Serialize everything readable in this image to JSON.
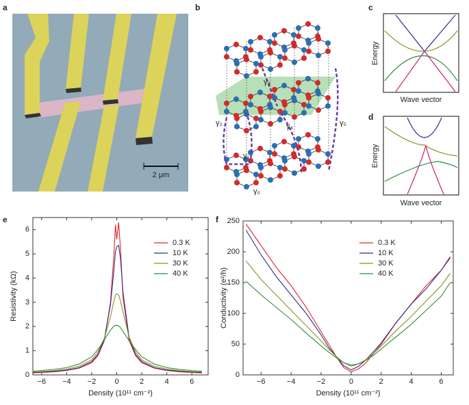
{
  "panels": {
    "a": {
      "label": "a",
      "scale_bar": "2 μm"
    },
    "b": {
      "label": "b",
      "hoppings": [
        "γ₀",
        "γ₁",
        "γ₂",
        "γ₃",
        "γ₄",
        "γ₅"
      ]
    },
    "c": {
      "label": "c",
      "y_label": "Energy",
      "x_label": "Wave vector"
    },
    "d": {
      "label": "d",
      "y_label": "Energy",
      "x_label": "Wave vector"
    }
  },
  "chart_data": [
    {
      "type": "line",
      "panel_label": "e",
      "x_label": "Density (10¹¹ cm⁻²)",
      "y_label": "Resistivity (kΩ)",
      "x": [
        -6.7,
        -6,
        -5,
        -4,
        -3,
        -2,
        -1.5,
        -1,
        -0.5,
        -0.25,
        -0.1,
        0,
        0.15,
        0.3,
        0.5,
        1,
        1.5,
        2,
        3,
        4,
        5,
        6,
        6.8
      ],
      "series": [
        {
          "name": "0.3 K",
          "color": "#e8202a",
          "values": [
            0.08,
            0.1,
            0.13,
            0.18,
            0.28,
            0.5,
            0.8,
            1.4,
            3.0,
            4.8,
            6.2,
            5.6,
            6.3,
            5.2,
            3.2,
            1.4,
            0.8,
            0.5,
            0.28,
            0.18,
            0.13,
            0.1,
            0.08
          ]
        },
        {
          "name": "10 K",
          "color": "#2a2e8c",
          "values": [
            0.1,
            0.12,
            0.15,
            0.2,
            0.3,
            0.55,
            0.85,
            1.45,
            2.9,
            4.2,
            5.1,
            5.3,
            5.35,
            4.8,
            3.4,
            1.5,
            0.85,
            0.55,
            0.3,
            0.2,
            0.15,
            0.12,
            0.1
          ]
        },
        {
          "name": "30 K",
          "color": "#8f8f1e",
          "values": [
            0.12,
            0.14,
            0.18,
            0.24,
            0.36,
            0.62,
            0.95,
            1.5,
            2.4,
            3.0,
            3.3,
            3.35,
            3.3,
            3.05,
            2.6,
            1.55,
            0.95,
            0.62,
            0.36,
            0.24,
            0.18,
            0.14,
            0.12
          ]
        },
        {
          "name": "40 K",
          "color": "#2a8c3c",
          "values": [
            0.15,
            0.18,
            0.23,
            0.3,
            0.45,
            0.75,
            1.05,
            1.45,
            1.85,
            2.0,
            2.05,
            2.05,
            2.03,
            1.95,
            1.8,
            1.4,
            1.05,
            0.75,
            0.45,
            0.3,
            0.23,
            0.18,
            0.15
          ]
        }
      ],
      "xlim": [
        -6.7,
        7.3
      ],
      "ylim": [
        0,
        6.5
      ],
      "xticks": [
        {
          "value": -6,
          "label": "−6"
        },
        {
          "value": -4,
          "label": "−4"
        },
        {
          "value": -2,
          "label": "−2"
        },
        0,
        2,
        4,
        6
      ],
      "yticks": [
        0,
        1,
        2,
        3,
        4,
        5,
        6
      ]
    },
    {
      "type": "line",
      "panel_label": "f",
      "x_label": "Density (10¹¹ cm⁻²)",
      "y_label": "Conductivity (e²/h)",
      "x": [
        -7,
        -6,
        -5,
        -4,
        -3,
        -2,
        -1.5,
        -1,
        -0.5,
        0,
        0.5,
        1,
        1.5,
        2,
        3,
        4,
        5,
        6,
        6.6
      ],
      "series": [
        {
          "name": "0.3 K",
          "color": "#e8202a",
          "values": [
            245,
            210,
            175,
            145,
            110,
            70,
            50,
            30,
            12,
            5,
            10,
            20,
            35,
            50,
            85,
            115,
            145,
            170,
            190
          ]
        },
        {
          "name": "10 K",
          "color": "#2a2e8c",
          "values": [
            235,
            195,
            160,
            130,
            100,
            65,
            45,
            30,
            15,
            8,
            14,
            25,
            38,
            52,
            85,
            115,
            140,
            170,
            192
          ]
        },
        {
          "name": "30 K",
          "color": "#8f8f1e",
          "values": [
            185,
            155,
            130,
            105,
            80,
            55,
            42,
            30,
            20,
            14,
            18,
            25,
            35,
            47,
            72,
            95,
            120,
            145,
            165
          ]
        },
        {
          "name": "40 K",
          "color": "#2a8c3c",
          "values": [
            152,
            130,
            110,
            90,
            68,
            47,
            37,
            28,
            20,
            16,
            18,
            24,
            32,
            42,
            62,
            82,
            105,
            128,
            150
          ]
        }
      ],
      "xlim": [
        -7.2,
        6.8
      ],
      "ylim": [
        0,
        250
      ],
      "xticks": [
        {
          "value": -6,
          "label": "−6"
        },
        {
          "value": -4,
          "label": "−4"
        },
        {
          "value": -2,
          "label": "−2"
        },
        0,
        2,
        4,
        6
      ],
      "yticks": [
        0,
        50,
        100,
        150,
        200,
        250
      ]
    }
  ]
}
